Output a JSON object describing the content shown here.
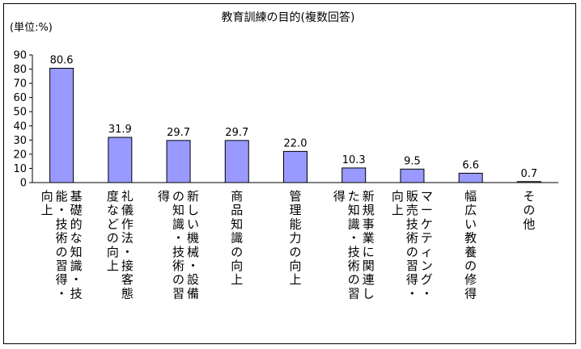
{
  "chart_data": {
    "type": "bar",
    "title": "教育訓練の目的(複数回答)",
    "unit_label": "(単位:%)",
    "ylim": [
      0,
      90
    ],
    "yticks": [
      0,
      10,
      20,
      30,
      40,
      50,
      60,
      70,
      80,
      90
    ],
    "grid": false,
    "legend": "none",
    "bar_color": "#9999ff",
    "categories": [
      "基礎的な知識・技能・技術の習得・向上",
      "礼儀作法・接客態度などの向上",
      "新しい機械・設備の知識・技術の習得",
      "商品知識の向上",
      "管理能力の向上",
      "新規事業に関連した知識・技術の習得",
      "マーケティング・販売技術の習得・向上",
      "幅広い教養の修得",
      "その他"
    ],
    "category_lines": [
      [
        "基礎的な知識・技",
        "能・技術の習得・",
        "向上"
      ],
      [
        "礼儀作法・接客態",
        "度などの向上"
      ],
      [
        "新しい機械・設備",
        "の知識・技術の習",
        "得"
      ],
      [
        "商品知識の向上"
      ],
      [
        "管理能力の向上"
      ],
      [
        "新規事業に関連し",
        "た知識・技術の習",
        "得"
      ],
      [
        "マーケティング・",
        "販売技術の習得・",
        "向上"
      ],
      [
        "幅広い教養の修得"
      ],
      [
        "その他"
      ]
    ],
    "values": [
      80.6,
      31.9,
      29.7,
      29.7,
      22.0,
      10.3,
      9.5,
      6.6,
      0.7
    ],
    "value_labels": [
      "80.6",
      "31.9",
      "29.7",
      "29.7",
      "22.0",
      "10.3",
      "9.5",
      "6.6",
      "0.7"
    ]
  }
}
